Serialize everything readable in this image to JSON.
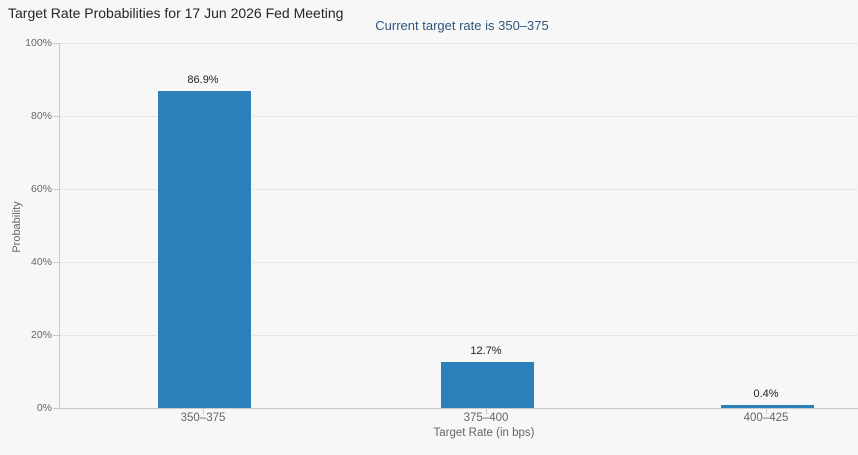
{
  "chart_data": {
    "type": "bar",
    "title": "Target Rate Probabilities for 17 Jun 2026 Fed Meeting",
    "subtitle": "Current target rate is 350–375",
    "categories": [
      "350–375",
      "375–400",
      "400–425"
    ],
    "values": [
      86.9,
      12.7,
      0.4
    ],
    "value_labels": [
      "86.9%",
      "12.7%",
      "0.4%"
    ],
    "xlabel": "Target Rate (in bps)",
    "ylabel": "Probability",
    "ylim": [
      0,
      100
    ],
    "y_tick_step": 20,
    "y_tick_labels": [
      "0%",
      "20%",
      "40%",
      "60%",
      "80%",
      "100%"
    ],
    "grid": "horizontal-dotted",
    "legend": "none",
    "colors": {
      "background": "#f7f7f7",
      "bar": "#2c80b9",
      "title": "#262626",
      "subtitle": "#33567d",
      "axis_label": "#666666",
      "value_label": "#222222",
      "gridline": "#d4d4d4",
      "axis_line": "#c9c9c9"
    }
  }
}
